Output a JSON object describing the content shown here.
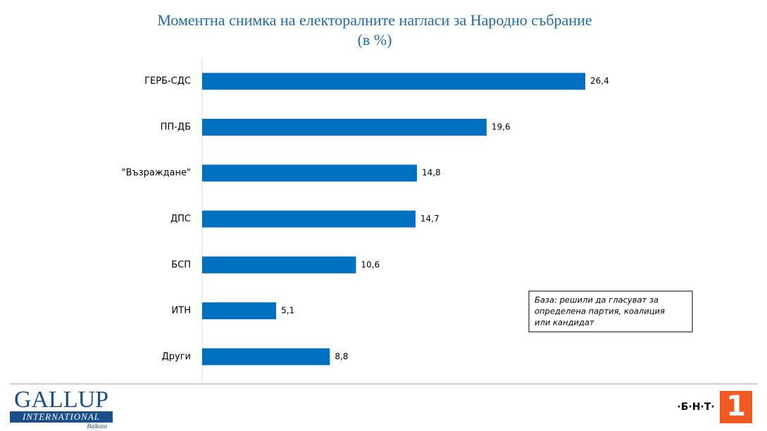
{
  "chart_data": {
    "type": "bar",
    "orientation": "horizontal",
    "title": "Моментна снимка на електоралните нагласи за Народно събрание",
    "subtitle": "(в %)",
    "categories": [
      "ГЕРБ-СДС",
      "ПП-ДБ",
      "\"Възраждане\"",
      "ДПС",
      "БСП",
      "ИТН",
      "Други"
    ],
    "values": [
      26.4,
      19.6,
      14.8,
      14.7,
      10.6,
      5.1,
      8.8
    ],
    "value_labels": [
      "26,4",
      "19,6",
      "14,8",
      "14,7",
      "10,6",
      "5,1",
      "8,8"
    ],
    "color": "#0070c0",
    "annotation": [
      "База: решили да гласуват за",
      "определена партия, коалиция",
      "или кандидат"
    ]
  },
  "logos": {
    "gallup": "GALLUP",
    "international": "INTERNATIONAL",
    "balkans": "Balkans",
    "bnt": "·Б·Н·Т·",
    "bnt_number": "1"
  }
}
